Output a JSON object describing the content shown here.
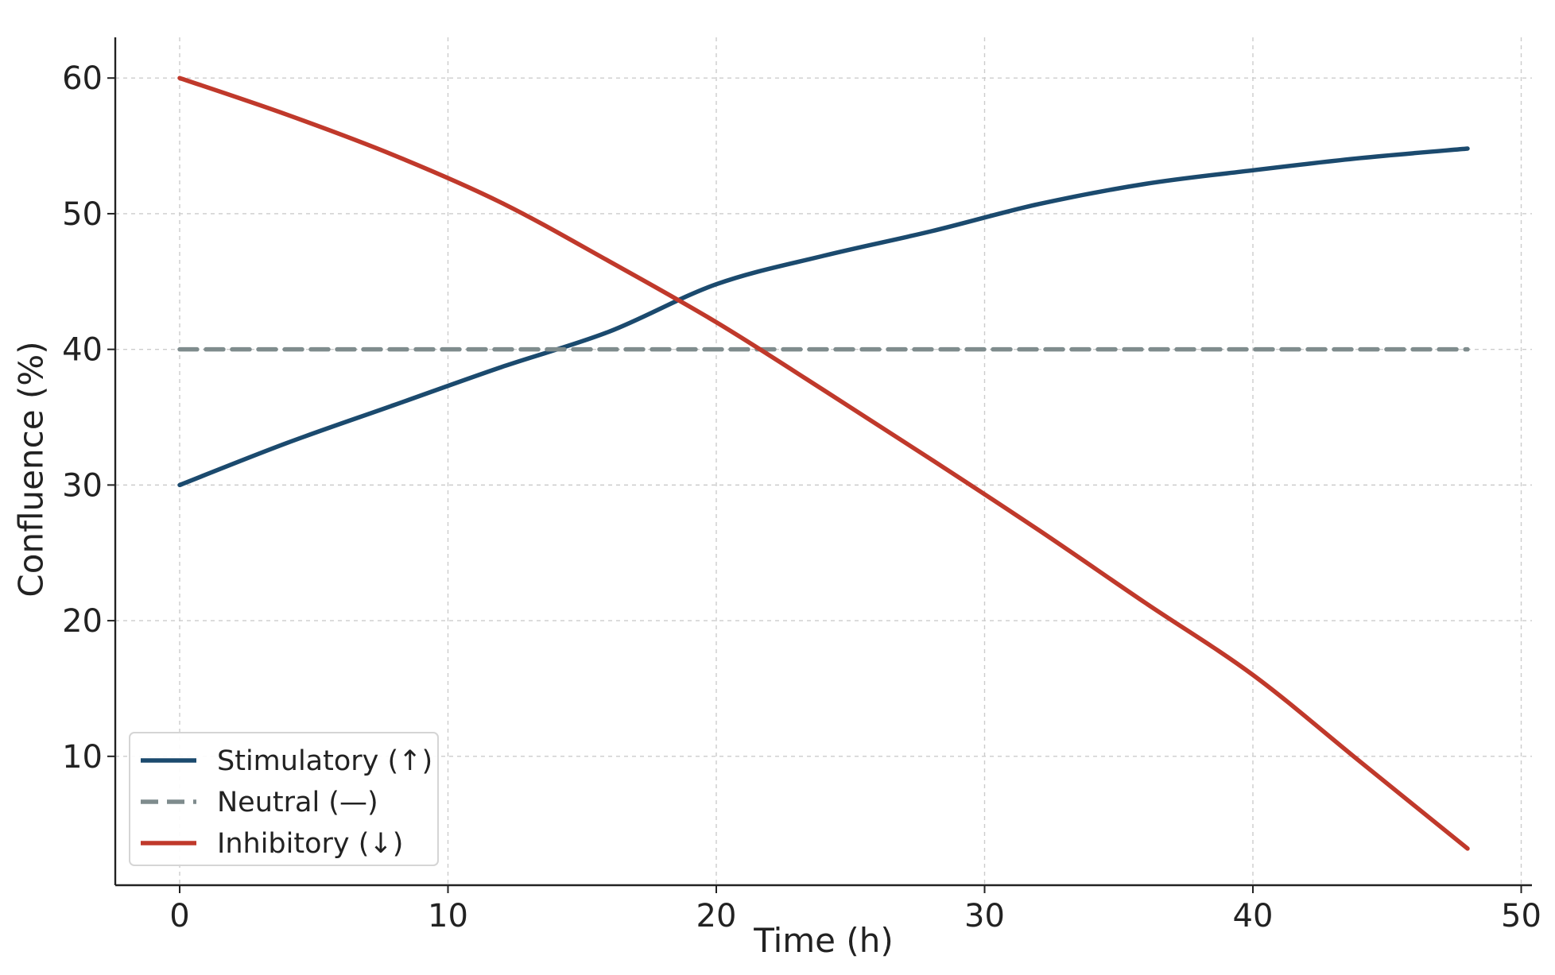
{
  "chart_data": {
    "type": "line",
    "title": "",
    "xlabel": "Time (h)",
    "ylabel": "Confluence (%)",
    "xlim": [
      -2.4,
      50.4
    ],
    "ylim": [
      0.5,
      63
    ],
    "x_ticks": [
      0,
      10,
      20,
      30,
      40,
      50
    ],
    "y_ticks": [
      10,
      20,
      30,
      40,
      50,
      60
    ],
    "grid": true,
    "legend_position": "lower-left",
    "x": [
      0,
      4,
      8,
      12,
      16,
      20,
      24,
      28,
      32,
      36,
      40,
      44,
      48
    ],
    "series": [
      {
        "name": "Stimulatory (↑)",
        "color": "#1b4a6e",
        "style": "solid",
        "values": [
          30.0,
          33.1,
          35.9,
          38.7,
          41.3,
          44.8,
          46.9,
          48.7,
          50.7,
          52.2,
          53.2,
          54.1,
          54.8
        ]
      },
      {
        "name": "Neutral (—)",
        "color": "#7f8c8d",
        "style": "dashed",
        "values": [
          40,
          40,
          40,
          40,
          40,
          40,
          40,
          40,
          40,
          40,
          40,
          40,
          40
        ]
      },
      {
        "name": "Inhibitory (↓)",
        "color": "#c0392b",
        "style": "solid",
        "values": [
          60.0,
          57.3,
          54.3,
          50.8,
          46.5,
          42.0,
          37.0,
          31.9,
          26.7,
          21.3,
          16.0,
          9.6,
          3.2
        ]
      }
    ]
  }
}
